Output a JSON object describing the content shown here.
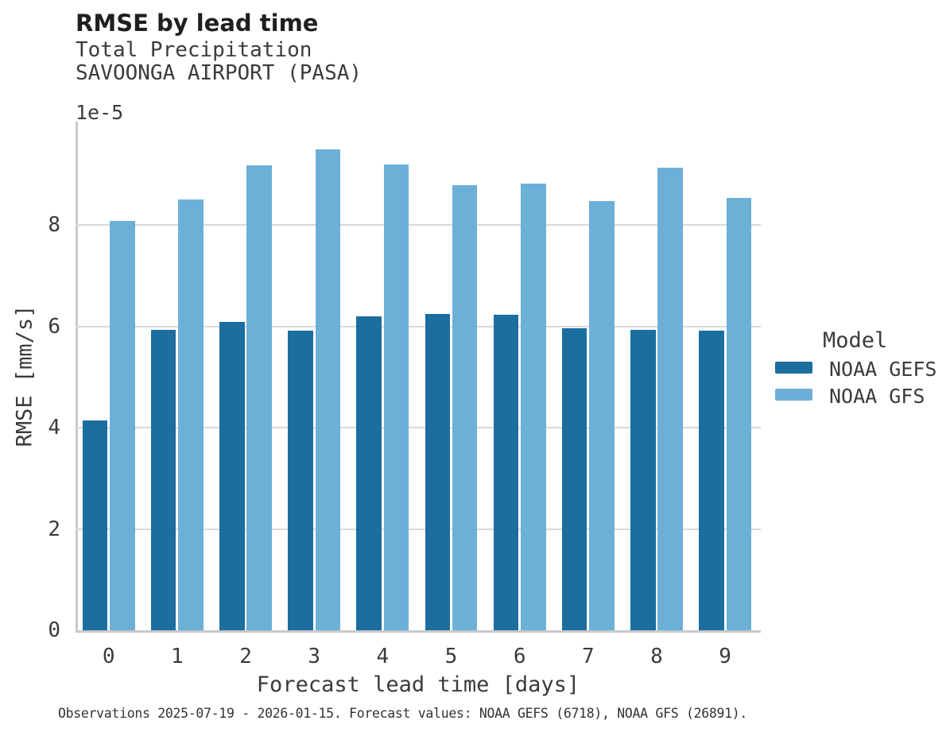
{
  "header": {
    "title": "RMSE by lead time",
    "subtitle_line1": "Total Precipitation",
    "subtitle_line2": "SAVOONGA AIRPORT (PASA)"
  },
  "chart_data": {
    "type": "bar",
    "title": "RMSE by lead time",
    "subtitle": [
      "Total Precipitation",
      "SAVOONGA AIRPORT (PASA)"
    ],
    "categories": [
      0,
      1,
      2,
      3,
      4,
      5,
      6,
      7,
      8,
      9
    ],
    "series": [
      {
        "name": "NOAA GEFS",
        "color": "#1b6e9e",
        "values": [
          4.14,
          5.93,
          6.08,
          5.91,
          6.2,
          6.25,
          6.23,
          5.96,
          5.93,
          5.92
        ]
      },
      {
        "name": "NOAA GFS",
        "color": "#6cb0d8",
        "values": [
          8.08,
          8.5,
          9.18,
          9.49,
          9.19,
          8.78,
          8.81,
          8.47,
          9.13,
          8.54
        ]
      }
    ],
    "value_scale_note": "values are in units of 1e-5 mm/s",
    "y_offset_label": "1e-5",
    "xlabel": "Forecast lead time [days]",
    "ylabel": "RMSE [mm/s]",
    "ylim": [
      0,
      10
    ],
    "yticks": [
      0,
      2,
      4,
      6,
      8
    ],
    "grid": true,
    "legend_title": "Model",
    "legend_position": "right"
  },
  "legend": {
    "title": "Model",
    "entries": [
      {
        "label": "NOAA GEFS",
        "color": "#1b6e9e"
      },
      {
        "label": "NOAA GFS",
        "color": "#6cb0d8"
      }
    ]
  },
  "footer": {
    "note": "Observations 2025-07-19 - 2026-01-15. Forecast values: NOAA GEFS (6718), NOAA GFS (26891)."
  },
  "colors": {
    "background": "#ffffff",
    "gridline": "#d9d9d9",
    "spine": "#c9c9c9",
    "text": "#3b3b3b",
    "title_text": "#1f1f1f"
  }
}
